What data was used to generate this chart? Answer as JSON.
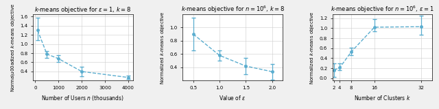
{
  "plot1": {
    "title": "$k$-means objective for $\\varepsilon = 1$, $k = 8$",
    "xlabel": "Number of Users $n$ (thousands)",
    "ylabel": "Norma\\u00adized $k$-means objective",
    "x": [
      100,
      500,
      1000,
      2000,
      4000
    ],
    "y": [
      1.3,
      0.78,
      0.68,
      0.4,
      0.27
    ],
    "yerr_low": [
      0.22,
      0.08,
      0.07,
      0.1,
      0.04
    ],
    "yerr_high": [
      0.28,
      0.07,
      0.07,
      0.1,
      0.04
    ],
    "xlim": [
      -100,
      4200
    ],
    "ylim": [
      0.2,
      1.65
    ],
    "yticks": [
      0.4,
      0.6,
      0.8,
      1.0,
      1.2,
      1.4,
      1.6
    ],
    "xticks": [
      0,
      1000,
      2000,
      3000,
      4000
    ]
  },
  "plot2": {
    "title": "$k$-means objective for $n = 10^6$, $k = 8$",
    "xlabel": "Value of $\\varepsilon$",
    "ylabel": "Normalized $k$-means objective",
    "x": [
      0.5,
      1.0,
      1.5,
      2.0
    ],
    "y": [
      0.9,
      0.58,
      0.42,
      0.335
    ],
    "yerr_low": [
      0.25,
      0.08,
      0.12,
      0.12
    ],
    "yerr_high": [
      0.25,
      0.08,
      0.12,
      0.12
    ],
    "xlim": [
      0.3,
      2.2
    ],
    "ylim": [
      0.2,
      1.2
    ],
    "yticks": [
      0.4,
      0.6,
      0.8,
      1.0
    ],
    "xticks": [
      0.5,
      1.0,
      1.5,
      2.0
    ]
  },
  "plot3": {
    "title": "$k$-means objective for $n = 10^6$, $\\varepsilon = 1$",
    "xlabel": "Number of Clusters $k$",
    "ylabel": "Normalized $k$-means objective",
    "x": [
      2,
      4,
      8,
      16,
      32
    ],
    "y": [
      0.16,
      0.21,
      0.53,
      1.02,
      1.03
    ],
    "yerr_low": [
      0.14,
      0.05,
      0.07,
      0.08,
      0.16
    ],
    "yerr_high": [
      0.14,
      0.08,
      0.08,
      0.16,
      0.22
    ],
    "xlim": [
      1.5,
      36
    ],
    "ylim": [
      -0.05,
      1.28
    ],
    "yticks": [
      0.0,
      0.2,
      0.4,
      0.6,
      0.8,
      1.0,
      1.2
    ],
    "xticks": [
      2,
      4,
      8,
      16,
      32
    ]
  },
  "line_color": "#5aadcf",
  "marker": "o",
  "markersize": 2.5,
  "linewidth": 1.0,
  "capsize": 2.5,
  "elinewidth": 0.9,
  "fig_facecolor": "#f0f0f0",
  "axes_facecolor": "#ffffff"
}
